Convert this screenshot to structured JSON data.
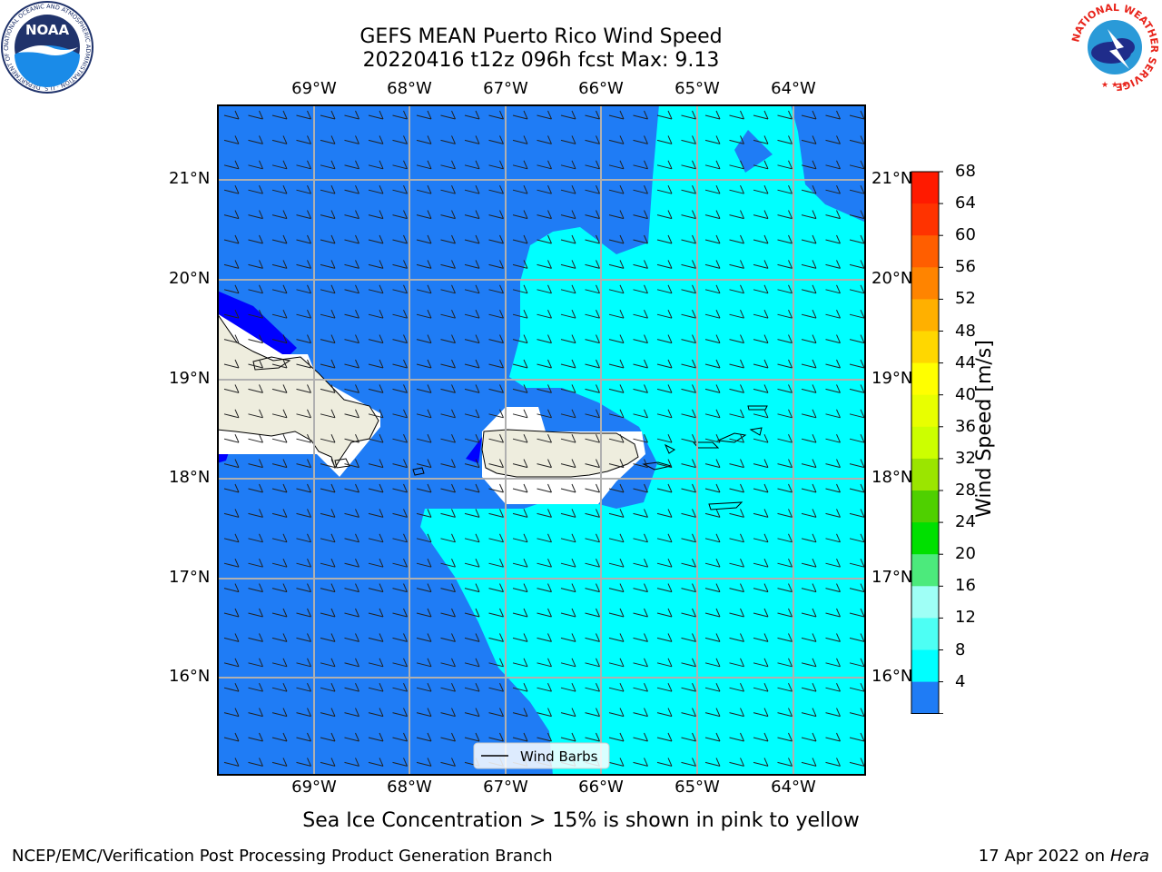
{
  "title": {
    "line1": "GEFS MEAN Puerto Rico Wind Speed",
    "line2": "20220416 t12z 096h fcst   Max: 9.13"
  },
  "map": {
    "lon_labels": [
      "69°W",
      "68°W",
      "67°W",
      "66°W",
      "65°W",
      "64°W"
    ],
    "lat_labels": [
      "21°N",
      "20°N",
      "19°N",
      "18°N",
      "17°N",
      "16°N"
    ],
    "legend_label": "Wind Barbs",
    "colors": {
      "band_4_8": "#1f7cf5",
      "band_8_12": "#00ffff",
      "band_below_4": "#0000ff",
      "land": "#eeedde",
      "grid": "#b0b0b0"
    }
  },
  "colorbar": {
    "label": "Wind Speed [m/s]",
    "ticks": [
      "68",
      "64",
      "60",
      "56",
      "52",
      "48",
      "44",
      "40",
      "36",
      "32",
      "28",
      "24",
      "20",
      "16",
      "12",
      "8",
      "4"
    ],
    "colors": [
      "#ff1a00",
      "#ff3300",
      "#ff5e00",
      "#ff8400",
      "#ffb000",
      "#ffd700",
      "#ffff00",
      "#e8ff00",
      "#ccff00",
      "#9be500",
      "#4fd000",
      "#00e000",
      "#4cea7c",
      "#9ffff6",
      "#4dfff4",
      "#00ffff",
      "#1f7cf5"
    ],
    "extend_color": "#0000ff"
  },
  "subtitle": "Sea Ice Concentration > 15% is shown in pink to yellow",
  "footer": {
    "left": "NCEP/EMC/Verification Post Processing Product Generation Branch",
    "date_text": "17 Apr 2022 on",
    "machine": "Hera"
  },
  "logos": {
    "noaa_text": "NOAA",
    "noaa_ring": "NATIONAL OCEANIC AND ATMOSPHERIC ADMINISTRATION · U.S. DEPARTMENT OF COMMERCE",
    "nws_ring": "NATIONAL WEATHER SERVICE"
  }
}
